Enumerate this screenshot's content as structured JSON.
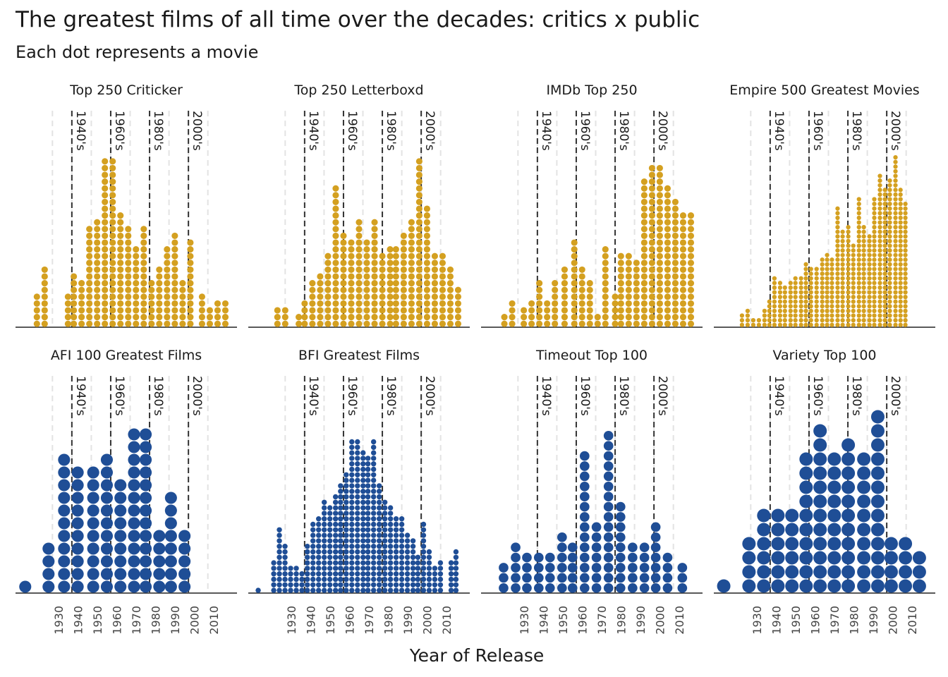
{
  "chart_data": {
    "type": "dotplot",
    "title": "The greatest films of all time over the decades: critics x public",
    "subtitle": "Each dot represents a movie",
    "x_label": "Year of Release",
    "xlim": [
      1911,
      2025
    ],
    "xticks": [
      1930,
      1940,
      1950,
      1960,
      1970,
      1980,
      1990,
      2000,
      2010
    ],
    "decades": [
      {
        "value": 1940,
        "label": "1940's"
      },
      {
        "value": 1960,
        "label": "1960's"
      },
      {
        "value": 1980,
        "label": "1980's"
      },
      {
        "value": 2000,
        "label": "2000's"
      }
    ],
    "panels": [
      {
        "title": "Top 250 Criticker",
        "color": "#d4a020",
        "x": [
          1922,
          1926,
          1938,
          1941,
          1945,
          1949,
          1953,
          1957,
          1961,
          1965,
          1969,
          1973,
          1977,
          1981,
          1985,
          1989,
          1993,
          1997,
          2001,
          2007,
          2011,
          2015,
          2019
        ],
        "counts": [
          5,
          9,
          5,
          8,
          7,
          15,
          16,
          25,
          25,
          17,
          15,
          12,
          15,
          7,
          9,
          12,
          14,
          7,
          13,
          5,
          3,
          4,
          4
        ]
      },
      {
        "title": "Top 250 Letterboxd",
        "color": "#d4a020",
        "x": [
          1926,
          1930,
          1937,
          1940,
          1944,
          1948,
          1952,
          1956,
          1960,
          1964,
          1968,
          1972,
          1976,
          1980,
          1984,
          1987,
          1991,
          1995,
          1999,
          2003,
          2007,
          2011,
          2015,
          2019
        ],
        "counts": [
          3,
          3,
          2,
          4,
          7,
          8,
          11,
          21,
          14,
          13,
          16,
          13,
          16,
          11,
          12,
          12,
          14,
          16,
          25,
          18,
          11,
          11,
          9,
          6
        ]
      },
      {
        "title": "IMDb Top 250",
        "color": "#d4a020",
        "x": [
          1923,
          1927,
          1933,
          1937,
          1941,
          1945,
          1949,
          1954,
          1959,
          1963,
          1967,
          1971,
          1975,
          1980,
          1983,
          1987,
          1991,
          1995,
          1999,
          2003,
          2007,
          2011,
          2015,
          2019
        ],
        "counts": [
          2,
          4,
          3,
          4,
          7,
          4,
          7,
          9,
          13,
          9,
          7,
          2,
          12,
          5,
          11,
          11,
          10,
          22,
          24,
          24,
          21,
          19,
          17,
          17
        ]
      },
      {
        "title": "Empire 500 Greatest Movies",
        "color": "#d4a020",
        "x": [
          1925.5,
          1928.4,
          1931.3,
          1934.2,
          1937.1,
          1939.6,
          1942.2,
          1945.1,
          1947.6,
          1950.5,
          1953,
          1955.9,
          1958.4,
          1961,
          1963.9,
          1966.8,
          1969.3,
          1971.8,
          1974.7,
          1977.3,
          1980.2,
          1982.8,
          1985.7,
          1988.2,
          1991.1,
          1993.6,
          1996.5,
          1999.1,
          2001.6,
          2004.5,
          2007.1,
          2009.6
        ],
        "counts": [
          3,
          4,
          2,
          2,
          4,
          6,
          11,
          10,
          9,
          10,
          11,
          11,
          14,
          13,
          13,
          15,
          16,
          15,
          26,
          21,
          22,
          18,
          28,
          22,
          20,
          28,
          33,
          30,
          32,
          37,
          30,
          27
        ]
      },
      {
        "title": "AFI 100 Greatest Films",
        "color": "#1f4e96",
        "x": [
          1916,
          1928,
          1936,
          1943,
          1951,
          1958,
          1965,
          1972,
          1978,
          1985,
          1991,
          1998
        ],
        "counts": [
          1,
          4,
          11,
          10,
          10,
          11,
          9,
          13,
          13,
          5,
          8,
          5
        ]
      },
      {
        "title": "BFI Greatest Films",
        "color": "#1f4e96",
        "x": [
          1916.1,
          1924.1,
          1927,
          1929.9,
          1932.8,
          1935.7,
          1938.6,
          1941.4,
          1944.3,
          1947.2,
          1950.1,
          1953,
          1955.9,
          1958.5,
          1961.4,
          1964.3,
          1967.2,
          1970.1,
          1972.6,
          1975.5,
          1978.4,
          1981.3,
          1984.2,
          1987.1,
          1990,
          1992.9,
          1995.8,
          1998.3,
          2001.2,
          2004.1,
          2007,
          2009.9,
          2015.4,
          2017.9
        ],
        "counts": [
          1,
          6,
          12,
          9,
          5,
          5,
          4,
          9,
          13,
          14,
          17,
          16,
          18,
          20,
          22,
          28,
          28,
          26,
          25,
          28,
          20,
          17,
          16,
          14,
          14,
          11,
          10,
          7,
          13,
          8,
          5,
          6,
          6,
          8
        ]
      },
      {
        "title": "Timeout Top 100",
        "color": "#1f4e96",
        "x": [
          1922.6,
          1928.8,
          1934.6,
          1940.7,
          1946.5,
          1952.7,
          1958.1,
          1964.3,
          1970.4,
          1976.6,
          1982.8,
          1989,
          1995.1,
          2000.9,
          2007,
          2014.6
        ],
        "counts": [
          3,
          5,
          4,
          4,
          4,
          6,
          5,
          14,
          7,
          16,
          9,
          5,
          5,
          7,
          4,
          3
        ]
      },
      {
        "title": "Variety Top 100",
        "color": "#1f4e96",
        "x": [
          1916.1,
          1929.1,
          1936.7,
          1944,
          1951.2,
          1958.5,
          1965.7,
          1973,
          1980.2,
          1988.2,
          1995.4,
          2002.3,
          2009.6,
          2016.8
        ],
        "counts": [
          1,
          4,
          6,
          6,
          6,
          10,
          12,
          10,
          11,
          10,
          13,
          4,
          4,
          3
        ]
      }
    ]
  }
}
